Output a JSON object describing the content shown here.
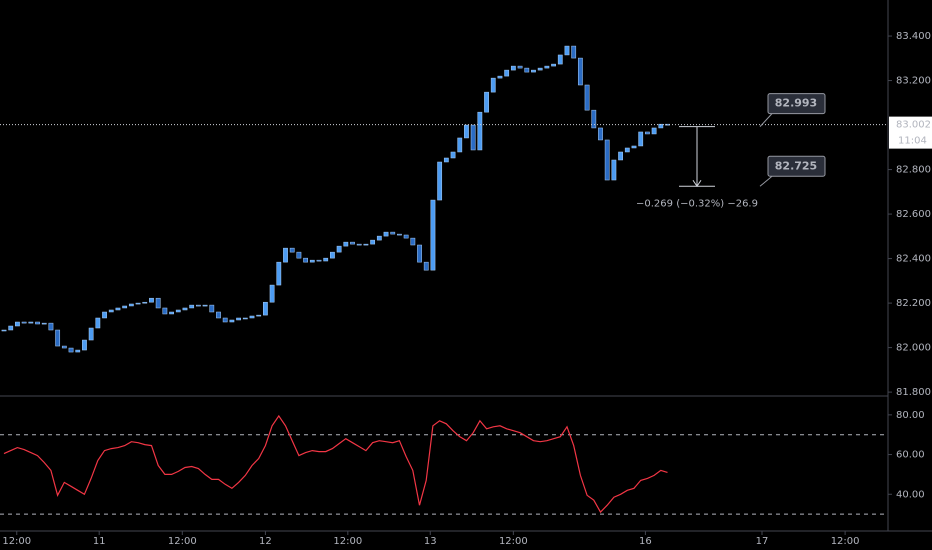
{
  "chart_data": [
    {
      "type": "candlestick",
      "close": [
        82.079,
        82.097,
        82.115,
        82.11,
        82.115,
        82.106,
        82.11,
        82.079,
        82.007,
        81.998,
        81.98,
        81.989,
        82.034,
        82.088,
        82.133,
        82.16,
        82.169,
        82.178,
        82.187,
        82.196,
        82.2,
        82.204,
        82.222,
        82.178,
        82.151,
        82.16,
        82.169,
        82.178,
        82.191,
        82.187,
        82.191,
        82.16,
        82.133,
        82.115,
        82.124,
        82.133,
        82.133,
        82.142,
        82.146,
        82.204,
        82.281,
        82.384,
        82.447,
        82.429,
        82.402,
        82.384,
        82.393,
        82.389,
        82.402,
        82.429,
        82.456,
        82.474,
        82.465,
        82.461,
        82.465,
        82.483,
        82.501,
        82.519,
        82.51,
        82.506,
        82.492,
        82.461,
        82.384,
        82.348,
        82.663,
        82.834,
        82.852,
        82.879,
        82.942,
        83.0,
        82.888,
        83.058,
        83.148,
        83.211,
        83.22,
        83.247,
        83.265,
        83.256,
        83.238,
        83.247,
        83.256,
        83.265,
        83.274,
        83.315,
        83.355,
        83.301,
        83.18,
        83.067,
        82.987,
        82.933,
        82.753,
        82.843,
        82.879,
        82.897,
        82.906,
        82.969,
        82.96,
        82.987,
        83.004,
        83.002
      ],
      "up_color": "#4d9cf2",
      "down_color": "#2b6cc4",
      "ylim": [
        81.787,
        83.562
      ],
      "yticks": [
        {
          "value": 83.4,
          "label": "83.400"
        },
        {
          "value": 83.2,
          "label": "83.200"
        },
        {
          "value": 82.8,
          "label": "82.800"
        },
        {
          "value": 82.6,
          "label": "82.600"
        },
        {
          "value": 82.4,
          "label": "82.400"
        },
        {
          "value": 82.2,
          "label": "82.200"
        },
        {
          "value": 82.0,
          "label": "82.000"
        },
        {
          "value": 81.8,
          "label": "81.800"
        }
      ],
      "xlim": [
        -0.6,
        131.9
      ],
      "xticks": [
        {
          "value": 1.9,
          "label": "12:00"
        },
        {
          "value": 14.2,
          "label": "11"
        },
        {
          "value": 26.6,
          "label": "12:00"
        },
        {
          "value": 39.0,
          "label": "12"
        },
        {
          "value": 51.3,
          "label": "12:00"
        },
        {
          "value": 63.6,
          "label": "13"
        },
        {
          "value": 76.0,
          "label": "12:00"
        },
        {
          "value": 95.7,
          "label": "16"
        },
        {
          "value": 113.1,
          "label": "17"
        },
        {
          "value": 125.5,
          "label": "12:00"
        }
      ],
      "last_price": {
        "value": 83.002,
        "label": "83.002"
      },
      "countdown": "11:04",
      "measure": {
        "from": {
          "value": 82.993,
          "label": "82.993"
        },
        "to": {
          "value": 82.725,
          "label": "82.725"
        },
        "text": "−0.269 (−0.32%) −26.9"
      }
    },
    {
      "type": "line",
      "values": [
        60.5,
        62,
        63.5,
        62.5,
        61,
        59.5,
        56,
        52,
        39.5,
        46,
        44,
        42,
        40,
        48,
        57,
        62,
        63,
        63.5,
        64.5,
        66.5,
        66,
        65,
        64.5,
        54.5,
        50,
        50,
        51.5,
        53.5,
        54,
        53,
        50,
        47.5,
        47.5,
        45,
        43,
        46,
        49.5,
        54.5,
        58,
        64.5,
        74.5,
        79.5,
        74.5,
        67,
        59.5,
        61,
        62,
        61.5,
        61.5,
        63,
        65.5,
        68,
        66,
        64,
        62,
        66,
        67,
        66.5,
        66,
        67,
        59,
        52,
        34.5,
        47,
        74.5,
        77,
        75.5,
        72,
        69,
        67,
        71,
        77,
        73,
        74,
        74.5,
        73,
        72,
        71,
        69,
        67,
        66.5,
        67,
        68,
        69,
        74,
        64.5,
        49.5,
        39.5,
        37,
        31,
        34.5,
        38.5,
        40,
        42,
        43,
        47,
        48,
        49.5,
        52,
        51
      ],
      "color": "#f23645",
      "ylim": [
        22,
        89.5
      ],
      "yticks": [
        {
          "value": 80,
          "label": "80.00"
        },
        {
          "value": 60,
          "label": "60.00"
        },
        {
          "value": 40,
          "label": "40.00"
        }
      ],
      "levels": [
        70,
        30
      ]
    }
  ]
}
